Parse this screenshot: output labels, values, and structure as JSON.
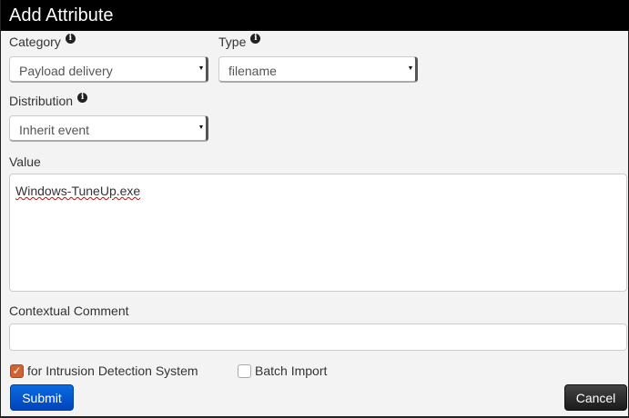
{
  "dialog": {
    "title": "Add Attribute"
  },
  "category": {
    "label": "Category",
    "value": "Payload delivery"
  },
  "type": {
    "label": "Type",
    "value": "filename"
  },
  "distribution": {
    "label": "Distribution",
    "value": "Inherit event"
  },
  "value": {
    "label": "Value",
    "text": "Windows-TuneUp.exe"
  },
  "comment": {
    "label": "Contextual Comment",
    "value": ""
  },
  "ids": {
    "label": "for Intrusion Detection System",
    "checked": true
  },
  "batch": {
    "label": "Batch Import",
    "checked": false
  },
  "buttons": {
    "submit": "Submit",
    "cancel": "Cancel"
  },
  "colors": {
    "submit": "#0055cc",
    "cancel": "#222222",
    "checkbox": "#d2622f"
  }
}
